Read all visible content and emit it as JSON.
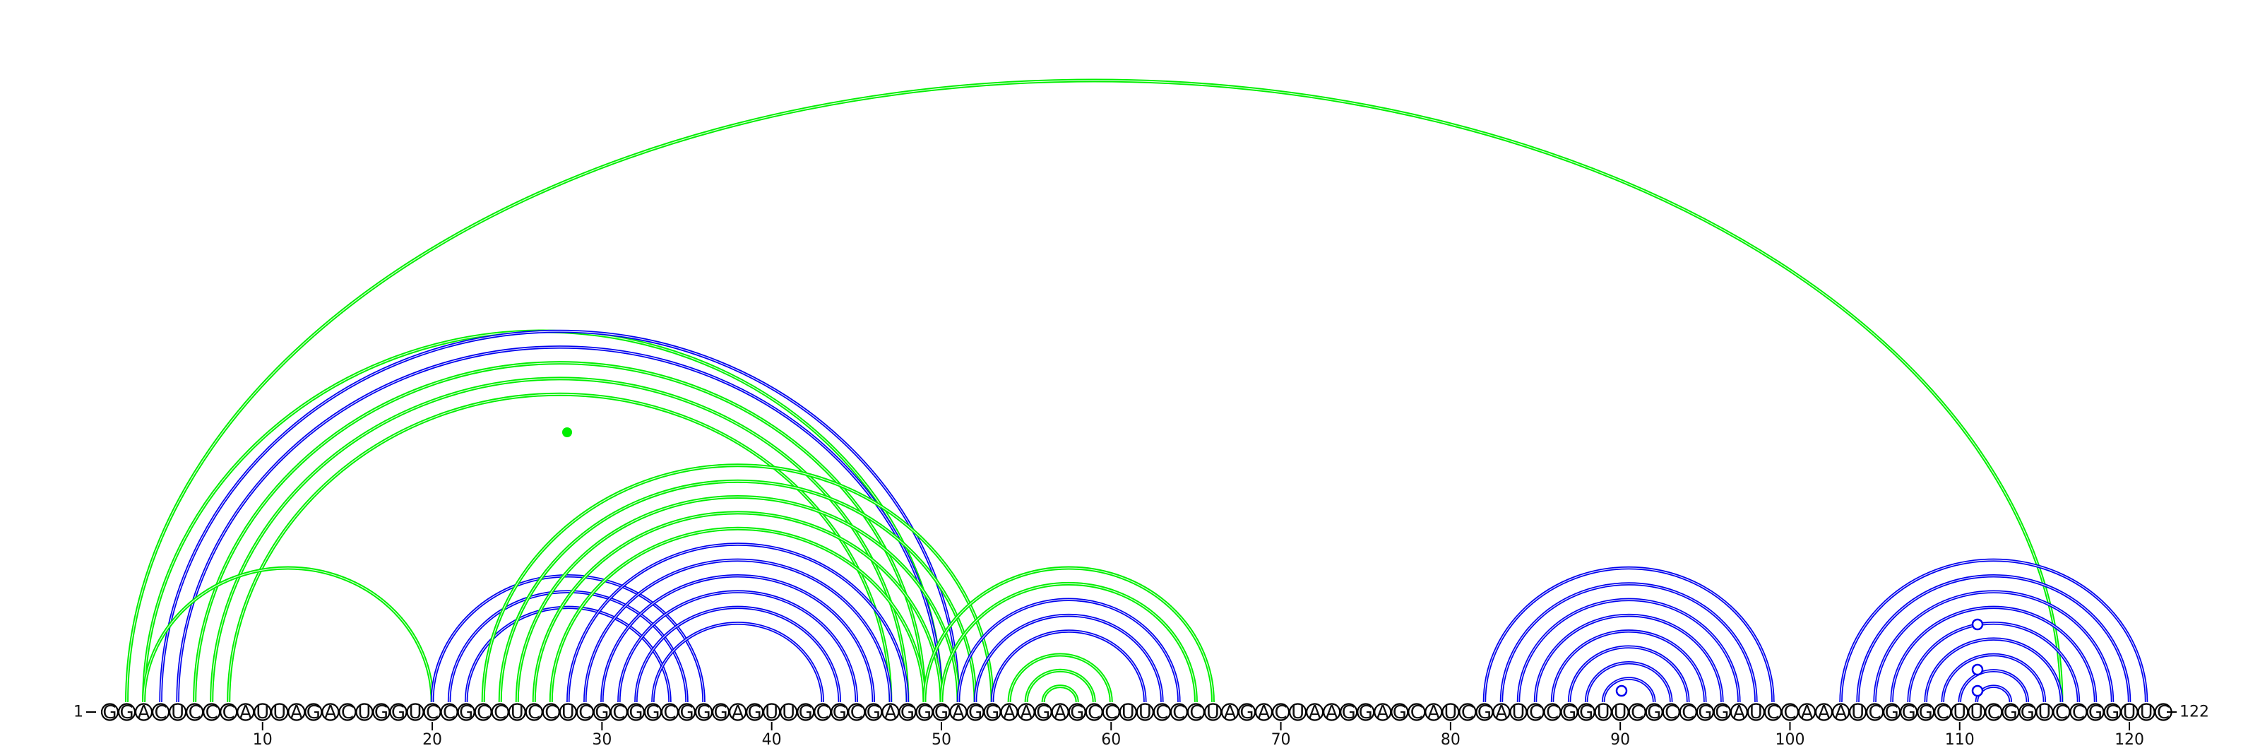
{
  "sequence": "GGACUCCCAUUAGACUGGUCCGCCUCCUCGCGGCGGGAGUUGCGCGAGGGAGGAAGAGCCUUCCCUAGACUAAGGAGCAUCGAUCCGGUUCGCCGGAUCCAAAUCGGGCUUCGGUCCGGUUC",
  "start_label": "1",
  "end_label": "122",
  "ticks": [
    10,
    20,
    30,
    40,
    50,
    60,
    70,
    80,
    90,
    100,
    110,
    120
  ],
  "colors": {
    "blue": "#0000ee",
    "green": "#00ee00"
  },
  "arcs": [
    {
      "i": 2,
      "j": 116,
      "color": "green"
    },
    {
      "i": 3,
      "j": 50,
      "color": "green"
    },
    {
      "i": 4,
      "j": 51,
      "color": "blue"
    },
    {
      "i": 5,
      "j": 50,
      "color": "blue"
    },
    {
      "i": 6,
      "j": 49,
      "color": "green"
    },
    {
      "i": 7,
      "j": 48,
      "color": "green"
    },
    {
      "i": 8,
      "j": 47,
      "color": "green"
    },
    {
      "i": 3,
      "j": 20,
      "color": "green"
    },
    {
      "i": 20,
      "j": 36,
      "color": "blue"
    },
    {
      "i": 21,
      "j": 35,
      "color": "blue"
    },
    {
      "i": 22,
      "j": 34,
      "color": "blue"
    },
    {
      "i": 23,
      "j": 53,
      "color": "green"
    },
    {
      "i": 24,
      "j": 52,
      "color": "green"
    },
    {
      "i": 25,
      "j": 51,
      "color": "green"
    },
    {
      "i": 26,
      "j": 50,
      "color": "green"
    },
    {
      "i": 27,
      "j": 49,
      "color": "green"
    },
    {
      "i": 28,
      "j": 48,
      "color": "blue"
    },
    {
      "i": 29,
      "j": 47,
      "color": "blue"
    },
    {
      "i": 30,
      "j": 46,
      "color": "blue"
    },
    {
      "i": 31,
      "j": 45,
      "color": "blue"
    },
    {
      "i": 32,
      "j": 44,
      "color": "blue"
    },
    {
      "i": 33,
      "j": 43,
      "color": "blue"
    },
    {
      "i": 49,
      "j": 66,
      "color": "green"
    },
    {
      "i": 50,
      "j": 65,
      "color": "green"
    },
    {
      "i": 51,
      "j": 64,
      "color": "blue"
    },
    {
      "i": 52,
      "j": 63,
      "color": "blue"
    },
    {
      "i": 53,
      "j": 62,
      "color": "blue"
    },
    {
      "i": 54,
      "j": 60,
      "color": "green"
    },
    {
      "i": 55,
      "j": 59,
      "color": "green"
    },
    {
      "i": 56,
      "j": 58,
      "color": "green"
    },
    {
      "i": 82,
      "j": 99,
      "color": "blue"
    },
    {
      "i": 83,
      "j": 98,
      "color": "blue"
    },
    {
      "i": 84,
      "j": 97,
      "color": "blue"
    },
    {
      "i": 85,
      "j": 96,
      "color": "blue"
    },
    {
      "i": 86,
      "j": 95,
      "color": "blue"
    },
    {
      "i": 87,
      "j": 94,
      "color": "blue"
    },
    {
      "i": 88,
      "j": 93,
      "color": "blue"
    },
    {
      "i": 89,
      "j": 92,
      "color": "blue"
    },
    {
      "i": 103,
      "j": 121,
      "color": "blue"
    },
    {
      "i": 104,
      "j": 120,
      "color": "blue"
    },
    {
      "i": 105,
      "j": 119,
      "color": "blue"
    },
    {
      "i": 106,
      "j": 118,
      "color": "blue"
    },
    {
      "i": 107,
      "j": 117,
      "color": "blue"
    },
    {
      "i": 108,
      "j": 116,
      "color": "blue"
    },
    {
      "i": 109,
      "j": 115,
      "color": "blue"
    },
    {
      "i": 110,
      "j": 114,
      "color": "blue"
    },
    {
      "i": 111,
      "j": 113,
      "color": "blue"
    }
  ]
}
